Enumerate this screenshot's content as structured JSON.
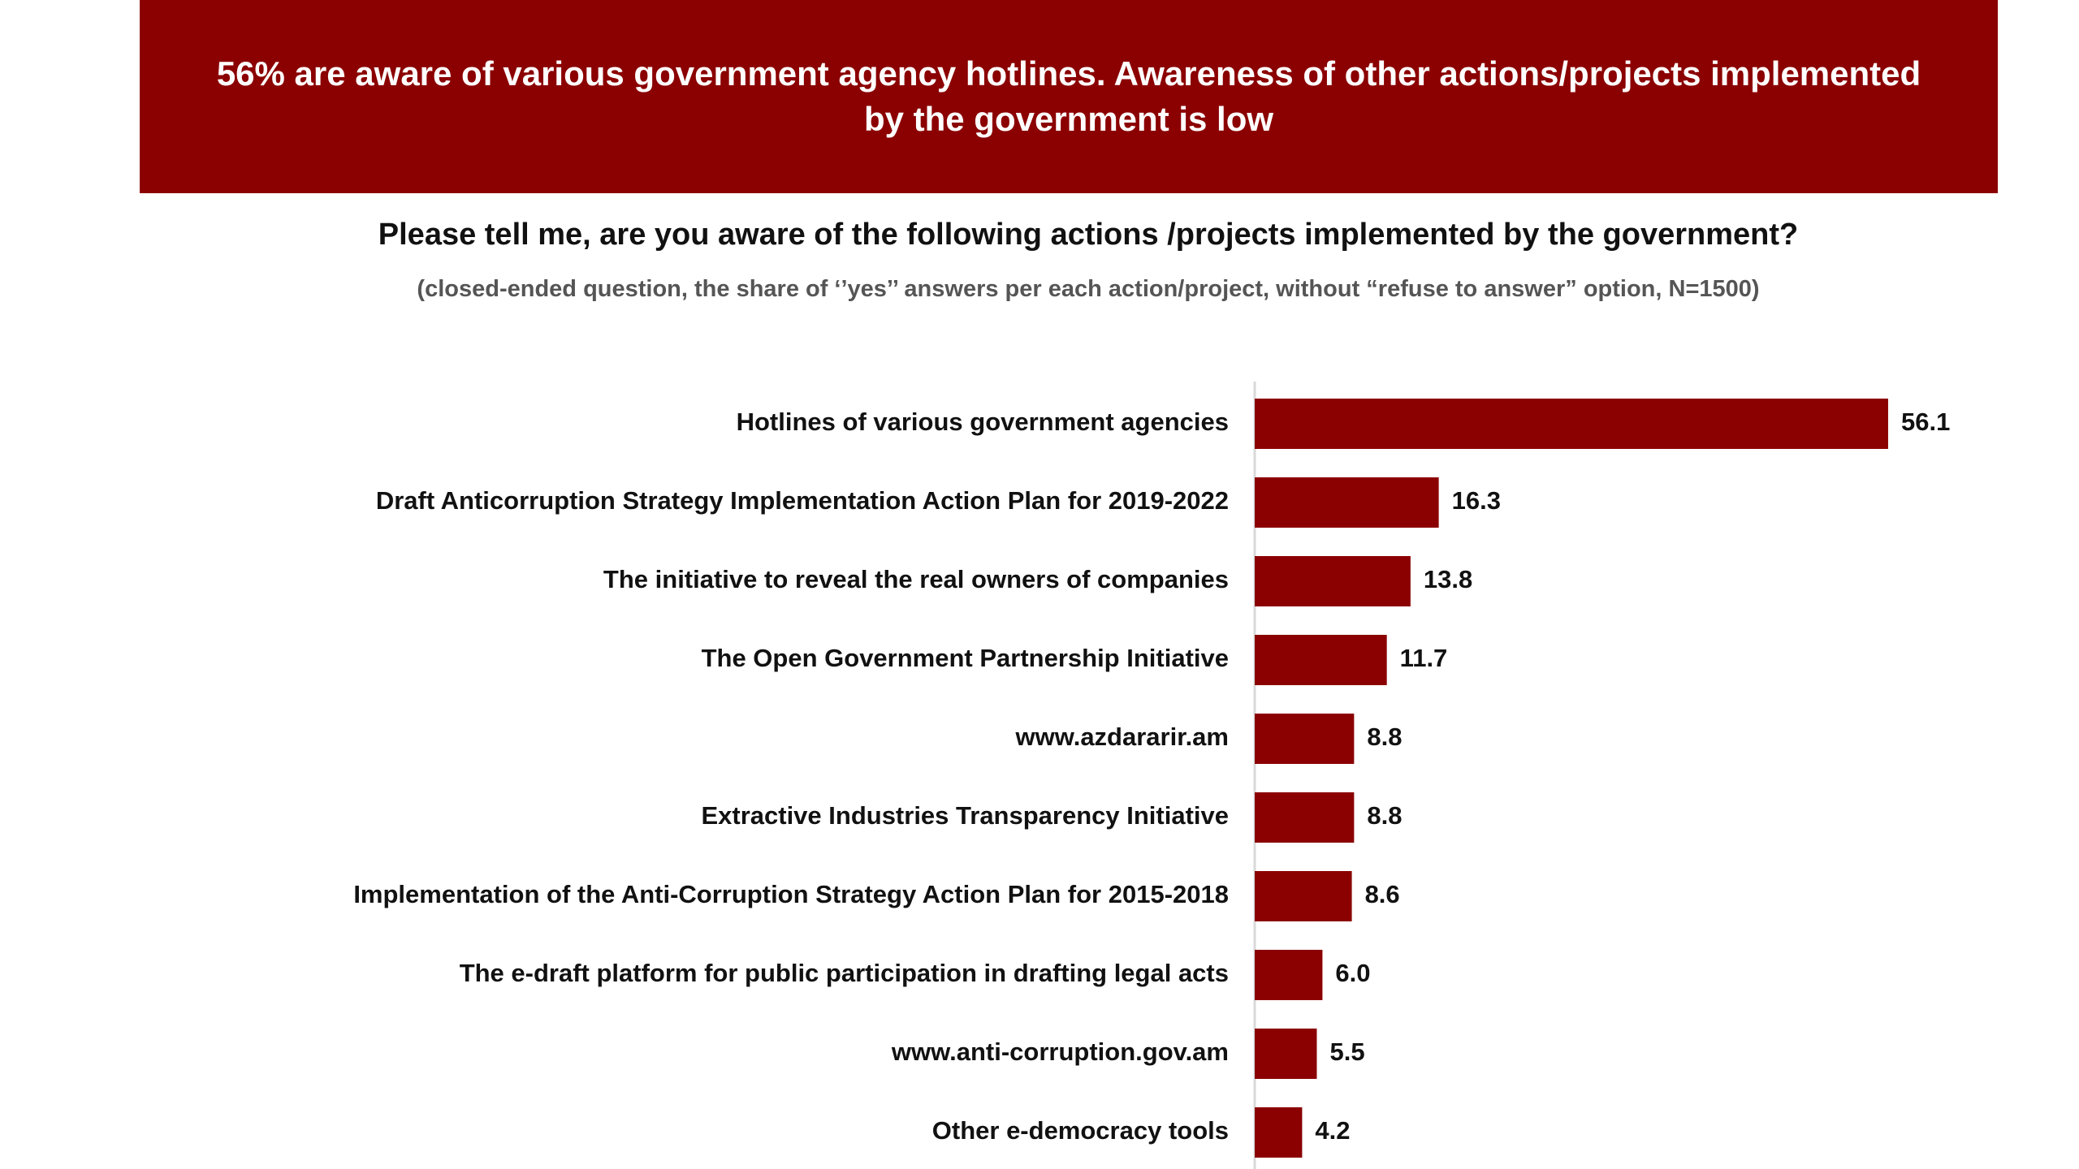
{
  "header": {
    "title": "56% are aware of various government agency hotlines. Awareness of other actions/projects implemented by the government is low"
  },
  "question": "Please tell me, are you aware of the following actions /projects implemented by the government?",
  "note": "(closed-ended question, the share of  ‘’yes’’  answers per each action/project, without “refuse to answer” option, N=1500)",
  "colors": {
    "accent": "#8b0000",
    "bar": "#8b0000"
  },
  "chart_data": {
    "type": "bar",
    "orientation": "horizontal",
    "categories": [
      "Hotlines of various government agencies",
      "Draft Anticorruption Strategy  Implementation Action Plan for  2019-2022",
      "The initiative to reveal the real owners of companies",
      "The Open Government Partnership Initiative",
      "www.azdararir.am",
      "Extractive Industries Transparency Initiative",
      "Implementation of the Anti-Corruption Strategy Action Plan for 2015-2018",
      "The e-draft platform for public participation in drafting legal acts",
      "www.anti-corruption.gov.am",
      "Other e-democracy tools"
    ],
    "values": [
      56.1,
      16.3,
      13.8,
      11.7,
      8.8,
      8.8,
      8.6,
      6.0,
      5.5,
      4.2
    ],
    "value_labels": [
      "56.1",
      "16.3",
      "13.8",
      "11.7",
      "8.8",
      "8.8",
      "8.6",
      "6.0",
      "5.5",
      "4.2"
    ],
    "xlim": [
      0,
      60
    ],
    "grid": false,
    "legend": "none"
  }
}
